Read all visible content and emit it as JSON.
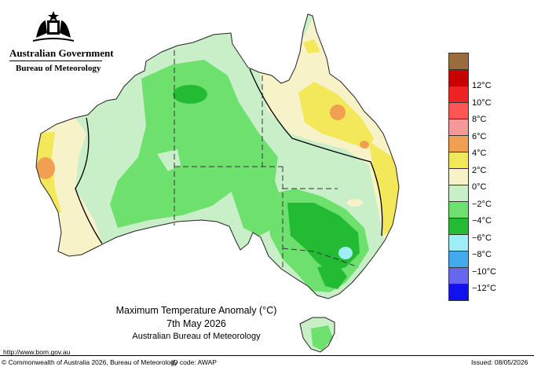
{
  "header": {
    "government": "Australian Government",
    "agency": "Bureau of Meteorology"
  },
  "map": {
    "title": "Maximum Temperature Anomaly (°C)",
    "date": "7th May 2026",
    "source": "Australian Bureau of Meteorology",
    "region": "Australia"
  },
  "legend": [
    {
      "label": "",
      "color": "#9c6b3c"
    },
    {
      "label": "12°C",
      "color": "#c80000"
    },
    {
      "label": "10°C",
      "color": "#ee2222"
    },
    {
      "label": "8°C",
      "color": "#ff5555"
    },
    {
      "label": "6°C",
      "color": "#f59898"
    },
    {
      "label": "4°C",
      "color": "#f0a050"
    },
    {
      "label": "2°C",
      "color": "#f2e85a"
    },
    {
      "label": "0°C",
      "color": "#f7f2c8"
    },
    {
      "label": "−2°C",
      "color": "#c8efc8"
    },
    {
      "label": "−4°C",
      "color": "#6ee06e"
    },
    {
      "label": "−6°C",
      "color": "#22bb33"
    },
    {
      "label": "−8°C",
      "color": "#9eeef5"
    },
    {
      "label": "−10°C",
      "color": "#44aaee"
    },
    {
      "label": "−12°C",
      "color": "#6666ee"
    },
    {
      "label": "",
      "color": "#1111ee"
    }
  ],
  "footer": {
    "url": "http://www.bom.gov.au",
    "copyright": "© Commonwealth of Australia 2026, Bureau of Meteorology",
    "id_code": "ID code: AWAP",
    "issued": "Issued: 08/05/2026"
  }
}
